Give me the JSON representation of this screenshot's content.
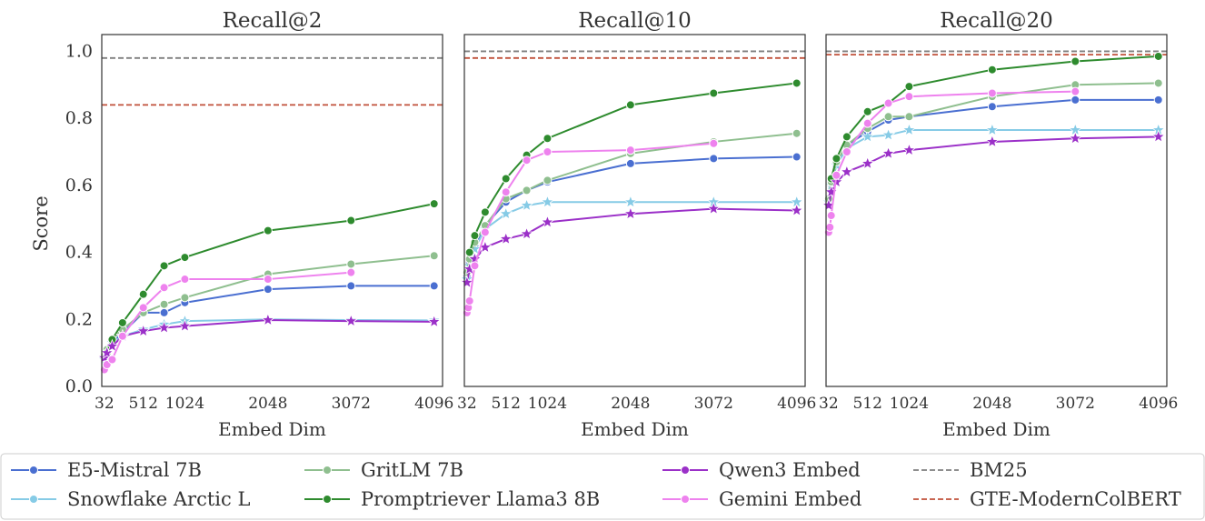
{
  "y_axis_label": "Score",
  "x_axis_label": "Embed Dim",
  "chart_data": [
    {
      "type": "line",
      "title": "Recall@2",
      "xlabel": "Embed Dim",
      "ylabel": "Score",
      "xlim": [
        0,
        4200
      ],
      "ylim": [
        0,
        1.05
      ],
      "xticks": [
        32,
        512,
        1024,
        2048,
        3072,
        4096
      ],
      "yticks": [
        0.0,
        0.2,
        0.4,
        0.6,
        0.8,
        1.0
      ],
      "grid": false,
      "baselines": [
        {
          "name": "BM25",
          "value": 0.98,
          "color": "#7f7f7f"
        },
        {
          "name": "GTE-ModernColBERT",
          "value": 0.84,
          "color": "#c0503a"
        }
      ],
      "series": [
        {
          "name": "E5-Mistral 7B",
          "color": "#4a6fd1",
          "marker": "circle",
          "x": [
            32,
            64,
            128,
            256,
            512,
            768,
            1024,
            2048,
            3072,
            4096
          ],
          "y": [
            0.09,
            0.1,
            0.13,
            0.16,
            0.22,
            0.22,
            0.25,
            0.29,
            0.3,
            0.3
          ]
        },
        {
          "name": "Snowflake Arctic L",
          "color": "#86cbe6",
          "marker": "star",
          "x": [
            32,
            64,
            128,
            256,
            512,
            768,
            1024,
            2048,
            3072,
            4096
          ],
          "y": [
            0.08,
            0.1,
            0.13,
            0.15,
            0.17,
            0.185,
            0.195,
            0.2,
            0.198,
            0.197
          ]
        },
        {
          "name": "GritLM 7B",
          "color": "#8fbf8f",
          "marker": "circle",
          "x": [
            32,
            64,
            128,
            256,
            512,
            768,
            1024,
            2048,
            3072,
            4096
          ],
          "y": [
            0.09,
            0.11,
            0.14,
            0.17,
            0.22,
            0.245,
            0.265,
            0.335,
            0.365,
            0.39
          ]
        },
        {
          "name": "Promptriever Llama3 8B",
          "color": "#2e8b2e",
          "marker": "circle",
          "x": [
            64,
            128,
            256,
            512,
            768,
            1024,
            2048,
            3072,
            4096
          ],
          "y": [
            0.1,
            0.14,
            0.19,
            0.275,
            0.36,
            0.385,
            0.465,
            0.495,
            0.545
          ]
        },
        {
          "name": "Qwen3 Embed",
          "color": "#9b30c8",
          "marker": "star",
          "x": [
            32,
            64,
            128,
            256,
            512,
            768,
            1024,
            2048,
            3072,
            4096
          ],
          "y": [
            0.085,
            0.1,
            0.12,
            0.15,
            0.165,
            0.175,
            0.18,
            0.198,
            0.195,
            0.193
          ]
        },
        {
          "name": "Gemini Embed",
          "color": "#ee82ee",
          "marker": "circle",
          "x": [
            32,
            64,
            128,
            256,
            512,
            768,
            1024,
            2048,
            3072
          ],
          "y": [
            0.05,
            0.065,
            0.08,
            0.15,
            0.235,
            0.295,
            0.32,
            0.32,
            0.34
          ]
        }
      ]
    },
    {
      "type": "line",
      "title": "Recall@10",
      "xlabel": "Embed Dim",
      "ylabel": "",
      "xlim": [
        0,
        4200
      ],
      "ylim": [
        0,
        1.05
      ],
      "xticks": [
        32,
        512,
        1024,
        2048,
        3072,
        4096
      ],
      "yticks": [
        0.0,
        0.2,
        0.4,
        0.6,
        0.8,
        1.0
      ],
      "grid": false,
      "baselines": [
        {
          "name": "BM25",
          "value": 1.0,
          "color": "#7f7f7f"
        },
        {
          "name": "GTE-ModernColBERT",
          "value": 0.98,
          "color": "#c0503a"
        }
      ],
      "series": [
        {
          "name": "E5-Mistral 7B",
          "color": "#4a6fd1",
          "marker": "circle",
          "x": [
            32,
            64,
            128,
            256,
            512,
            768,
            1024,
            2048,
            3072,
            4096
          ],
          "y": [
            0.33,
            0.37,
            0.42,
            0.48,
            0.55,
            0.585,
            0.61,
            0.665,
            0.68,
            0.685
          ]
        },
        {
          "name": "Snowflake Arctic L",
          "color": "#86cbe6",
          "marker": "star",
          "x": [
            32,
            64,
            128,
            256,
            512,
            768,
            1024,
            2048,
            3072,
            4096
          ],
          "y": [
            0.32,
            0.36,
            0.41,
            0.47,
            0.515,
            0.54,
            0.55,
            0.55,
            0.55,
            0.55
          ]
        },
        {
          "name": "GritLM 7B",
          "color": "#8fbf8f",
          "marker": "circle",
          "x": [
            32,
            64,
            128,
            256,
            512,
            768,
            1024,
            2048,
            3072,
            4096
          ],
          "y": [
            0.34,
            0.38,
            0.43,
            0.48,
            0.56,
            0.585,
            0.615,
            0.695,
            0.73,
            0.755
          ]
        },
        {
          "name": "Promptriever Llama3 8B",
          "color": "#2e8b2e",
          "marker": "circle",
          "x": [
            64,
            128,
            256,
            512,
            768,
            1024,
            2048,
            3072,
            4096
          ],
          "y": [
            0.4,
            0.45,
            0.52,
            0.62,
            0.69,
            0.74,
            0.84,
            0.875,
            0.905
          ]
        },
        {
          "name": "Qwen3 Embed",
          "color": "#9b30c8",
          "marker": "star",
          "x": [
            32,
            64,
            128,
            256,
            512,
            768,
            1024,
            2048,
            3072,
            4096
          ],
          "y": [
            0.31,
            0.35,
            0.38,
            0.415,
            0.44,
            0.455,
            0.49,
            0.515,
            0.53,
            0.525
          ]
        },
        {
          "name": "Gemini Embed",
          "color": "#ee82ee",
          "marker": "circle",
          "x": [
            32,
            48,
            64,
            128,
            256,
            512,
            768,
            1024,
            2048,
            3072
          ],
          "y": [
            0.22,
            0.235,
            0.255,
            0.36,
            0.46,
            0.58,
            0.675,
            0.7,
            0.705,
            0.725
          ]
        }
      ]
    },
    {
      "type": "line",
      "title": "Recall@20",
      "xlabel": "Embed Dim",
      "ylabel": "",
      "xlim": [
        0,
        4200
      ],
      "ylim": [
        0,
        1.05
      ],
      "xticks": [
        32,
        512,
        1024,
        2048,
        3072,
        4096
      ],
      "yticks": [
        0.0,
        0.2,
        0.4,
        0.6,
        0.8,
        1.0
      ],
      "grid": false,
      "baselines": [
        {
          "name": "BM25",
          "value": 1.0,
          "color": "#7f7f7f"
        },
        {
          "name": "GTE-ModernColBERT",
          "value": 0.99,
          "color": "#c0503a"
        }
      ],
      "series": [
        {
          "name": "E5-Mistral 7B",
          "color": "#4a6fd1",
          "marker": "circle",
          "x": [
            32,
            64,
            128,
            256,
            512,
            768,
            1024,
            2048,
            3072,
            4096
          ],
          "y": [
            0.55,
            0.6,
            0.66,
            0.72,
            0.76,
            0.795,
            0.805,
            0.835,
            0.855,
            0.855
          ]
        },
        {
          "name": "Snowflake Arctic L",
          "color": "#86cbe6",
          "marker": "star",
          "x": [
            32,
            64,
            128,
            256,
            512,
            768,
            1024,
            2048,
            3072,
            4096
          ],
          "y": [
            0.55,
            0.6,
            0.66,
            0.71,
            0.745,
            0.75,
            0.765,
            0.765,
            0.765,
            0.765
          ]
        },
        {
          "name": "GritLM 7B",
          "color": "#8fbf8f",
          "marker": "circle",
          "x": [
            32,
            64,
            128,
            256,
            512,
            768,
            1024,
            2048,
            3072,
            4096
          ],
          "y": [
            0.56,
            0.61,
            0.67,
            0.72,
            0.77,
            0.805,
            0.805,
            0.865,
            0.9,
            0.905
          ]
        },
        {
          "name": "Promptriever Llama3 8B",
          "color": "#2e8b2e",
          "marker": "circle",
          "x": [
            64,
            128,
            256,
            512,
            768,
            1024,
            2048,
            3072,
            4096
          ],
          "y": [
            0.62,
            0.68,
            0.745,
            0.82,
            0.845,
            0.895,
            0.945,
            0.97,
            0.985
          ]
        },
        {
          "name": "Qwen3 Embed",
          "color": "#9b30c8",
          "marker": "star",
          "x": [
            32,
            64,
            128,
            256,
            512,
            768,
            1024,
            2048,
            3072,
            4096
          ],
          "y": [
            0.54,
            0.58,
            0.61,
            0.64,
            0.665,
            0.695,
            0.705,
            0.73,
            0.74,
            0.745
          ]
        },
        {
          "name": "Gemini Embed",
          "color": "#ee82ee",
          "marker": "circle",
          "x": [
            32,
            48,
            64,
            128,
            256,
            512,
            768,
            1024,
            2048,
            3072
          ],
          "y": [
            0.46,
            0.475,
            0.51,
            0.63,
            0.7,
            0.785,
            0.845,
            0.865,
            0.875,
            0.88
          ]
        }
      ]
    }
  ],
  "legend": {
    "items": [
      {
        "name": "E5-Mistral 7B",
        "color": "#4a6fd1",
        "style": "line-marker"
      },
      {
        "name": "GritLM 7B",
        "color": "#8fbf8f",
        "style": "line-marker"
      },
      {
        "name": "Qwen3 Embed",
        "color": "#9b30c8",
        "style": "line-marker"
      },
      {
        "name": "BM25",
        "color": "#7f7f7f",
        "style": "dashed"
      },
      {
        "name": "Snowflake Arctic L",
        "color": "#86cbe6",
        "style": "line-marker"
      },
      {
        "name": "Promptriever Llama3 8B",
        "color": "#2e8b2e",
        "style": "line-marker"
      },
      {
        "name": "Gemini Embed",
        "color": "#ee82ee",
        "style": "line-marker"
      },
      {
        "name": "GTE-ModernColBERT",
        "color": "#c0503a",
        "style": "dashed"
      }
    ]
  }
}
